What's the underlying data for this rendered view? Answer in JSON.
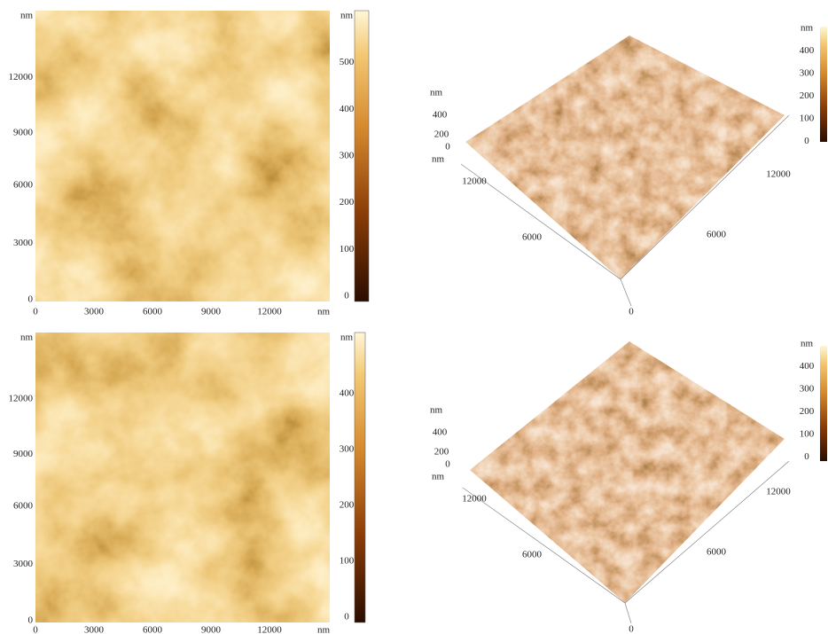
{
  "panels_2d": [
    {
      "y_ticks": [
        "nm",
        "12000",
        "9000",
        "6000",
        "3000",
        "0"
      ],
      "x_ticks": [
        "0",
        "3000",
        "6000",
        "9000",
        "12000",
        "nm"
      ],
      "colorbar": [
        "nm",
        "500",
        "400",
        "300",
        "200",
        "100",
        "0"
      ]
    },
    {
      "y_ticks": [
        "nm",
        "12000",
        "9000",
        "6000",
        "3000",
        "0"
      ],
      "x_ticks": [
        "0",
        "3000",
        "6000",
        "9000",
        "12000",
        "nm"
      ],
      "colorbar": [
        "nm",
        "400",
        "300",
        "200",
        "100",
        "0"
      ]
    }
  ],
  "panels_3d": [
    {
      "z_labels": [
        "nm",
        "400",
        "200",
        "0",
        "nm"
      ],
      "axis_labels": [
        "12000",
        "6000",
        "6000",
        "12000",
        "0"
      ],
      "colorbar": [
        "nm",
        "400",
        "300",
        "200",
        "100",
        "0"
      ]
    },
    {
      "z_labels": [
        "nm",
        "400",
        "200",
        "0",
        "nm"
      ],
      "axis_labels": [
        "12000",
        "6000",
        "6000",
        "12000",
        "0"
      ],
      "colorbar": [
        "nm",
        "400",
        "300",
        "200",
        "100",
        "0"
      ]
    }
  ]
}
